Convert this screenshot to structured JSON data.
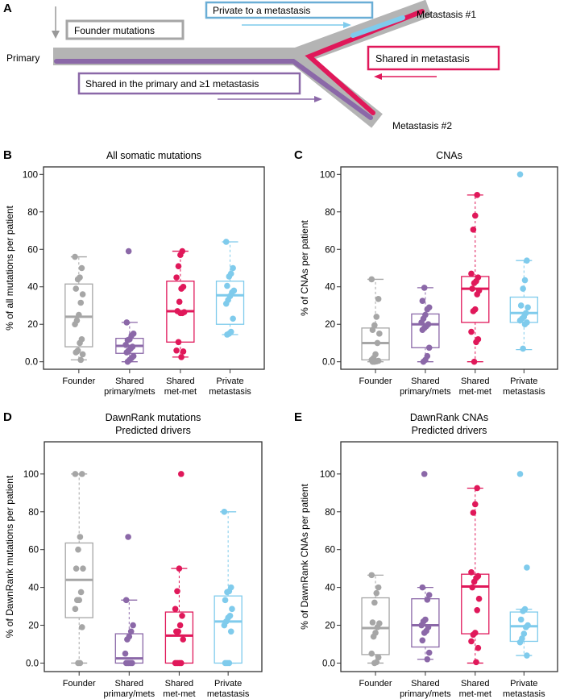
{
  "colors": {
    "founder": "#a6a6a6",
    "shared_pm": "#8b68a8",
    "shared_mm": "#e0185a",
    "private": "#7fcbec",
    "band": "#b4b4b4"
  },
  "diagram": {
    "panel_letter": "A",
    "primary": "Primary",
    "met1": "Metastasis #1",
    "met2": "Metastasis #2",
    "founder": "Founder mutations",
    "private": "Private to a metastasis",
    "shared_met": "Shared in metastasis",
    "shared_primary": "Shared in the primary and ≥1 metastasis"
  },
  "chart_data": [
    {
      "panel": "B",
      "type": "box",
      "title": [
        "All somatic mutations"
      ],
      "ylabel": "% of all mutations per patient",
      "ylim": [
        -4,
        104
      ],
      "yticks": [
        "0.0",
        "20",
        "40",
        "60",
        "80",
        "100"
      ],
      "ytick_values": [
        0,
        20,
        40,
        60,
        80,
        100
      ],
      "categories": [
        [
          "Founder"
        ],
        [
          "Shared",
          "primary/mets"
        ],
        [
          "Shared",
          "met-met"
        ],
        [
          "Private",
          "metastasis"
        ]
      ],
      "groups": [
        {
          "key": "founder",
          "q1": 8,
          "median": 24,
          "q3": 41.5,
          "whisker_low": 1,
          "whisker_high": 56,
          "points": [
            56,
            50,
            45,
            44,
            39,
            36,
            31.5,
            25,
            22,
            20,
            12,
            10,
            6,
            5,
            4,
            1
          ]
        },
        {
          "key": "shared_pm",
          "q1": 4.5,
          "median": 8.5,
          "q3": 12.5,
          "whisker_low": 0,
          "whisker_high": 21,
          "points": [
            59,
            21,
            15,
            14,
            12,
            11.5,
            9,
            8,
            7,
            6,
            5,
            3,
            2,
            1,
            0
          ]
        },
        {
          "key": "shared_mm",
          "q1": 10.5,
          "median": 27,
          "q3": 43,
          "whisker_low": 2.5,
          "whisker_high": 59,
          "points": [
            59,
            57,
            51,
            45,
            40,
            39,
            32,
            27,
            26.5,
            26,
            26,
            10.5,
            6,
            5.5,
            2.5
          ]
        },
        {
          "key": "private",
          "q1": 20,
          "median": 35.5,
          "q3": 43,
          "whisker_low": 14.5,
          "whisker_high": 64,
          "points": [
            64,
            50,
            47,
            45.5,
            40.5,
            38,
            37,
            35,
            33,
            31,
            23,
            16,
            15,
            14.5
          ]
        }
      ]
    },
    {
      "panel": "C",
      "type": "box",
      "title": [
        "CNAs"
      ],
      "ylabel": "% of CNAs per patient",
      "ylim": [
        -4,
        104
      ],
      "yticks": [
        "0.0",
        "20",
        "40",
        "60",
        "80",
        "100"
      ],
      "ytick_values": [
        0,
        20,
        40,
        60,
        80,
        100
      ],
      "categories": [
        [
          "Founder"
        ],
        [
          "Shared",
          "primary/mets"
        ],
        [
          "Shared",
          "met-met"
        ],
        [
          "Private",
          "metastasis"
        ]
      ],
      "groups": [
        {
          "key": "founder",
          "q1": 1,
          "median": 10,
          "q3": 18,
          "whisker_low": 0,
          "whisker_high": 44,
          "points": [
            44,
            33.5,
            24,
            19.5,
            17,
            15,
            10,
            4,
            2,
            1,
            0.5,
            0.2,
            0,
            0
          ]
        },
        {
          "key": "shared_pm",
          "q1": 7.5,
          "median": 20,
          "q3": 25.5,
          "whisker_low": 0,
          "whisker_high": 39.5,
          "points": [
            39.5,
            32.5,
            29,
            28,
            25,
            23,
            21,
            20,
            19,
            18,
            17,
            7.5,
            3,
            1,
            0
          ]
        },
        {
          "key": "shared_mm",
          "q1": 21,
          "median": 39,
          "q3": 45.5,
          "whisker_low": 0,
          "whisker_high": 89,
          "points": [
            89,
            78,
            70.5,
            47,
            45,
            43,
            42,
            39,
            38,
            36,
            28,
            27,
            16,
            12,
            10.5,
            0
          ]
        },
        {
          "key": "private",
          "q1": 21,
          "median": 26,
          "q3": 34.5,
          "whisker_low": 6.5,
          "whisker_high": 54,
          "points": [
            100,
            54,
            43.5,
            39,
            30,
            29,
            26,
            24,
            23,
            22,
            21,
            20,
            7
          ]
        }
      ]
    },
    {
      "panel": "D",
      "type": "box",
      "title": [
        "DawnRank mutations",
        "Predicted drivers"
      ],
      "ylabel": "% of DawnRank mutations per patient",
      "ylim": [
        -4.5,
        117
      ],
      "yticks": [
        "0.0",
        "20",
        "40",
        "60",
        "80",
        "100"
      ],
      "ytick_values": [
        0,
        20,
        40,
        60,
        80,
        100
      ],
      "categories": [
        [
          "Founder"
        ],
        [
          "Shared",
          "primary/mets"
        ],
        [
          "Shared",
          "met-met"
        ],
        [
          "Private",
          "metastasis"
        ]
      ],
      "groups": [
        {
          "key": "founder",
          "q1": 24,
          "median": 44,
          "q3": 63.5,
          "whisker_low": 0,
          "whisker_high": 100,
          "points": [
            100,
            100,
            66.7,
            60,
            50,
            50,
            37.5,
            33.3,
            33.3,
            28.6,
            19,
            0,
            0
          ]
        },
        {
          "key": "shared_pm",
          "q1": 0,
          "median": 2.5,
          "q3": 15.5,
          "whisker_low": 0,
          "whisker_high": 33.3,
          "points": [
            66.7,
            33.3,
            20,
            16.7,
            14,
            12.5,
            5,
            0,
            0,
            0,
            0
          ]
        },
        {
          "key": "shared_mm",
          "q1": 0,
          "median": 14.5,
          "q3": 27,
          "whisker_low": 0,
          "whisker_high": 50,
          "points": [
            100,
            50,
            38,
            28.6,
            25,
            20,
            16.7,
            16.7,
            12.5,
            0,
            0,
            0,
            0
          ]
        },
        {
          "key": "private",
          "q1": 0,
          "median": 22,
          "q3": 35.5,
          "whisker_low": 0,
          "whisker_high": 80,
          "points": [
            80,
            40,
            38,
            37.5,
            33.3,
            28.6,
            25,
            24,
            22,
            20,
            16.7,
            0,
            0,
            0
          ]
        }
      ]
    },
    {
      "panel": "E",
      "type": "box",
      "title": [
        "DawnRank CNAs",
        "Predicted drivers"
      ],
      "ylabel": "% of DawnRank CNAs per patient",
      "ylim": [
        -4.5,
        117
      ],
      "yticks": [
        "0.0",
        "20",
        "40",
        "60",
        "80",
        "100"
      ],
      "ytick_values": [
        0,
        20,
        40,
        60,
        80,
        100
      ],
      "categories": [
        [
          "Founder"
        ],
        [
          "Shared",
          "primary/mets"
        ],
        [
          "Shared",
          "met-met"
        ],
        [
          "Private",
          "metastasis"
        ]
      ],
      "groups": [
        {
          "key": "founder",
          "q1": 4.5,
          "median": 18.5,
          "q3": 34.5,
          "whisker_low": 0,
          "whisker_high": 46.5,
          "points": [
            46.5,
            40,
            37,
            32,
            21.5,
            21,
            19,
            16,
            14,
            5,
            3,
            0.5,
            0
          ]
        },
        {
          "key": "shared_pm",
          "q1": 8.5,
          "median": 20,
          "q3": 34,
          "whisker_low": 2,
          "whisker_high": 40,
          "points": [
            100,
            40,
            36,
            33.5,
            23,
            22,
            20,
            19,
            17,
            16,
            12,
            5.5,
            2
          ]
        },
        {
          "key": "shared_mm",
          "q1": 15.5,
          "median": 40.5,
          "q3": 47,
          "whisker_low": 0,
          "whisker_high": 92.5,
          "points": [
            92.5,
            84,
            79.5,
            48,
            46,
            45,
            43,
            40,
            34,
            28,
            16,
            15,
            11.5,
            8,
            0.5
          ]
        },
        {
          "key": "private",
          "q1": 11.5,
          "median": 19.5,
          "q3": 27,
          "whisker_low": 4,
          "whisker_high": 28.5,
          "points": [
            100,
            50.5,
            28.5,
            27.5,
            23,
            20,
            19,
            15.5,
            13,
            11,
            4
          ]
        }
      ]
    }
  ]
}
